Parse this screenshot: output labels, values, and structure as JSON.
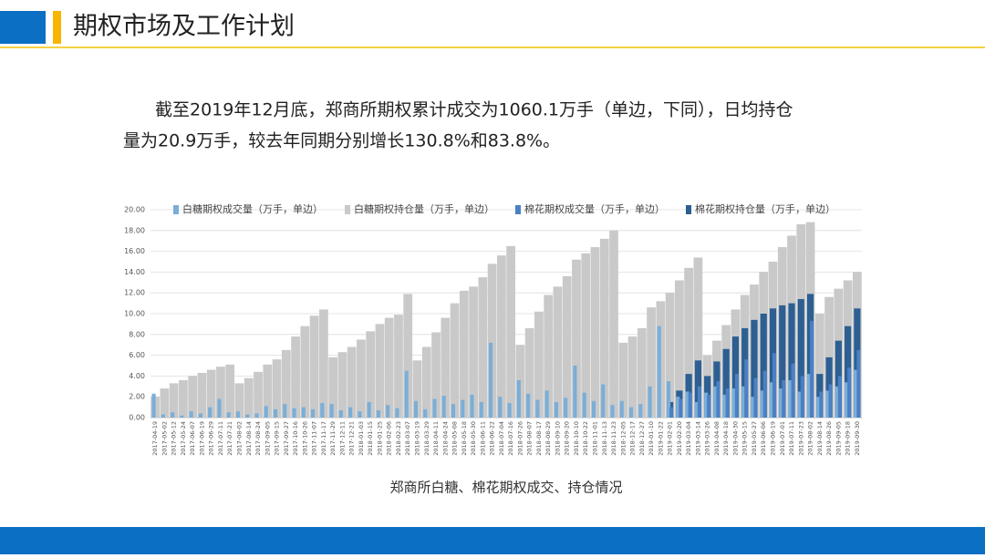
{
  "header": {
    "title": "期权市场及工作计划"
  },
  "paragraph": [
    "截至2019年12月底，郑商所期权累计成交为1060.1万手（单边，下同），日均持仓",
    "量为20.9万手，较去年同期分别增长130.8%和83.8%。"
  ],
  "chart_data": {
    "type": "bar",
    "title": "郑商所白糖、棉花期权成交、持仓情况",
    "categories": [
      "2017-04-19",
      "2017-05-02",
      "2017-05-12",
      "2017-05-24",
      "2017-06-07",
      "2017-06-19",
      "2017-06-29",
      "2017-07-11",
      "2017-07-21",
      "2017-08-02",
      "2017-08-14",
      "2017-08-24",
      "2017-09-05",
      "2017-09-15",
      "2017-09-27",
      "2017-10-16",
      "2017-10-26",
      "2017-11-07",
      "2017-11-17",
      "2017-11-29",
      "2017-12-11",
      "2017-12-21",
      "2018-01-03",
      "2018-01-15",
      "2018-01-25",
      "2018-02-06",
      "2018-02-23",
      "2018-03-07",
      "2018-03-19",
      "2018-03-29",
      "2018-04-11",
      "2018-04-24",
      "2018-05-08",
      "2018-05-18",
      "2018-05-30",
      "2018-06-11",
      "2018-06-22",
      "2018-07-04",
      "2018-07-16",
      "2018-07-26",
      "2018-08-07",
      "2018-08-17",
      "2018-08-29",
      "2018-09-10",
      "2018-09-20",
      "2018-10-10",
      "2018-10-22",
      "2018-11-01",
      "2018-11-13",
      "2018-11-23",
      "2018-12-05",
      "2018-12-17",
      "2018-12-27",
      "2019-01-10",
      "2019-01-22",
      "2019-02-01",
      "2019-02-20",
      "2019-03-04",
      "2019-03-14",
      "2019-03-26",
      "2019-04-08",
      "2019-04-18",
      "2019-04-30",
      "2019-05-15",
      "2019-05-27",
      "2019-06-06",
      "2019-06-19",
      "2019-07-01",
      "2019-07-11",
      "2019-07-23",
      "2019-08-02",
      "2019-08-14",
      "2019-08-26",
      "2019-09-05",
      "2019-09-18",
      "2019-09-30"
    ],
    "series": [
      {
        "name": "白糖期权持仓量（万手，单边）",
        "color": "#c9c9c9",
        "values": [
          2.0,
          2.8,
          3.3,
          3.6,
          4.0,
          4.3,
          4.6,
          4.9,
          5.1,
          3.3,
          3.8,
          4.4,
          5.1,
          5.6,
          6.5,
          7.8,
          8.8,
          9.8,
          10.4,
          5.8,
          6.3,
          6.8,
          7.5,
          8.3,
          9.0,
          9.6,
          9.9,
          11.9,
          5.5,
          6.8,
          8.2,
          9.6,
          11.0,
          12.2,
          12.6,
          13.5,
          14.8,
          15.6,
          16.5,
          7.0,
          8.6,
          10.2,
          11.8,
          12.6,
          13.6,
          15.2,
          15.8,
          16.4,
          17.2,
          18.0,
          7.2,
          7.8,
          8.6,
          10.6,
          11.2,
          12.0,
          13.2,
          14.4,
          15.4,
          6.0,
          7.4,
          8.9,
          10.4,
          11.8,
          12.8,
          14.0,
          15.0,
          16.4,
          17.5,
          18.6,
          18.8,
          10.0,
          11.6,
          12.4,
          13.2,
          14.0
        ]
      },
      {
        "name": "棉花期权持仓量（万手，单边）",
        "color": "#2d5f92",
        "values": [
          null,
          null,
          null,
          null,
          null,
          null,
          null,
          null,
          null,
          null,
          null,
          null,
          null,
          null,
          null,
          null,
          null,
          null,
          null,
          null,
          null,
          null,
          null,
          null,
          null,
          null,
          null,
          null,
          null,
          null,
          null,
          null,
          null,
          null,
          null,
          null,
          null,
          null,
          null,
          null,
          null,
          null,
          null,
          null,
          null,
          null,
          null,
          null,
          null,
          null,
          null,
          null,
          null,
          null,
          null,
          1.5,
          2.6,
          4.2,
          5.5,
          4.0,
          5.4,
          6.6,
          7.8,
          8.6,
          9.4,
          10.0,
          10.5,
          10.8,
          11.0,
          11.4,
          11.9,
          4.2,
          5.8,
          7.4,
          8.8,
          10.5
        ]
      },
      {
        "name": "白糖期权成交量（万手，单边）",
        "color": "#7aaed8",
        "values": [
          2.3,
          0.3,
          0.5,
          0.2,
          0.6,
          0.4,
          1.0,
          1.8,
          0.5,
          0.6,
          0.3,
          0.4,
          1.1,
          0.8,
          1.3,
          0.9,
          1.0,
          0.8,
          1.4,
          1.3,
          0.7,
          1.0,
          0.6,
          1.5,
          0.7,
          1.2,
          0.9,
          4.5,
          1.6,
          0.8,
          1.8,
          2.1,
          1.3,
          1.7,
          2.2,
          1.5,
          7.2,
          2.0,
          1.4,
          3.6,
          2.3,
          1.7,
          2.6,
          1.5,
          1.9,
          5.0,
          2.4,
          1.6,
          3.2,
          1.2,
          1.6,
          1.0,
          1.3,
          3.0,
          8.8,
          3.5,
          2.0,
          2.5,
          1.5,
          2.4,
          3.0,
          2.2,
          2.8,
          3.0,
          2.0,
          2.6,
          3.4,
          2.8,
          3.6,
          2.5,
          4.2,
          2.0,
          2.6,
          3.0,
          3.4,
          4.6
        ]
      },
      {
        "name": "棉花期权成交量（万手，单边）",
        "color": "#4a80c4",
        "values": [
          null,
          null,
          null,
          null,
          null,
          null,
          null,
          null,
          null,
          null,
          null,
          null,
          null,
          null,
          null,
          null,
          null,
          null,
          null,
          null,
          null,
          null,
          null,
          null,
          null,
          null,
          null,
          null,
          null,
          null,
          null,
          null,
          null,
          null,
          null,
          null,
          null,
          null,
          null,
          null,
          null,
          null,
          null,
          null,
          null,
          null,
          null,
          null,
          null,
          null,
          null,
          null,
          null,
          null,
          null,
          1.0,
          1.8,
          2.4,
          3.0,
          2.2,
          3.5,
          2.8,
          4.2,
          5.6,
          3.8,
          4.5,
          6.2,
          3.6,
          5.2,
          4.0,
          9.3,
          2.5,
          3.2,
          4.0,
          4.8,
          6.5
        ]
      }
    ],
    "legend_order": [
      2,
      0,
      3,
      1
    ],
    "ylim": [
      0,
      20
    ],
    "yticks": [
      {
        "value": 0,
        "label": "0.00"
      },
      {
        "value": 2,
        "label": "2.00"
      },
      {
        "value": 4,
        "label": "4.00"
      },
      {
        "value": 6,
        "label": "6.00"
      },
      {
        "value": 8,
        "label": "8.00"
      },
      {
        "value": 10,
        "label": "10.00"
      },
      {
        "value": 12,
        "label": "12.00"
      },
      {
        "value": 14,
        "label": "14.00"
      },
      {
        "value": 16,
        "label": "16.00"
      },
      {
        "value": 18,
        "label": "18.00"
      },
      {
        "value": 20,
        "label": "20.00"
      }
    ],
    "grid": true
  }
}
